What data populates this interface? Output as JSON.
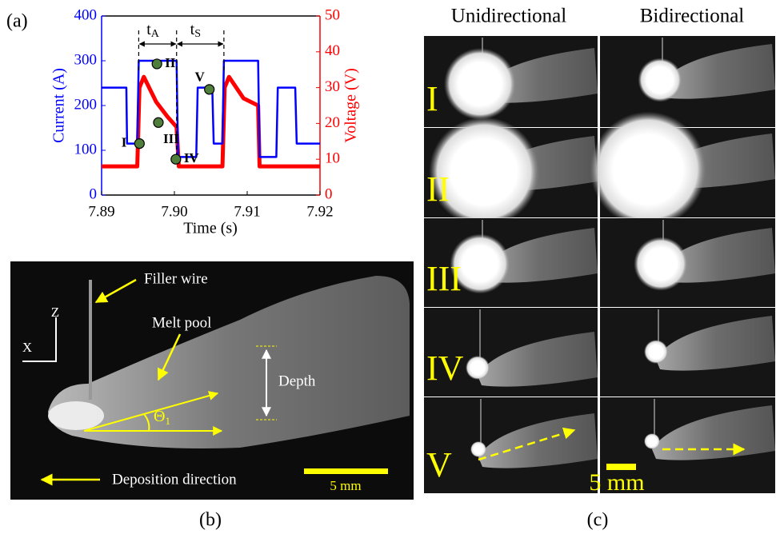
{
  "chart_data": {
    "type": "line",
    "panel_label": "(a)",
    "x_label": "Time (s)",
    "y_label": "Current (A)",
    "y2_label": "Voltage (V)",
    "xlim": [
      7.89,
      7.92
    ],
    "xticks": [
      7.89,
      {
        "value": 7.9,
        "label": "7.90"
      },
      7.91,
      7.92
    ],
    "ylim": [
      0,
      400
    ],
    "yticks": [
      0,
      100,
      200,
      300,
      400
    ],
    "y2lim": [
      0,
      50
    ],
    "y2ticks": [
      0,
      10,
      20,
      30,
      40,
      50
    ],
    "series": [
      {
        "color": "#0000ff",
        "x": [
          7.89,
          7.8934,
          7.8935,
          7.8949,
          7.8951,
          7.9003,
          7.9005,
          7.903,
          7.9032,
          7.9052,
          7.9054,
          7.9066,
          7.9068,
          7.9115,
          7.9117,
          7.914,
          7.9142,
          7.9166,
          7.9168,
          7.92
        ],
        "values": [
          240,
          240,
          115,
          115,
          300,
          300,
          85,
          85,
          240,
          240,
          115,
          115,
          300,
          300,
          85,
          85,
          240,
          240,
          115,
          115
        ]
      },
      {
        "color": "#ff0000",
        "axis": "y2",
        "x": [
          7.89,
          7.8949,
          7.8952,
          7.8958,
          7.8975,
          7.899,
          7.9003,
          7.9006,
          7.9066,
          7.9069,
          7.9075,
          7.9095,
          7.9115,
          7.9117,
          7.92
        ],
        "values": [
          8,
          8,
          30,
          33,
          26,
          22,
          19,
          8,
          8,
          30,
          33,
          27,
          25,
          8,
          8
        ]
      }
    ],
    "points": {
      "color": "#4f7f3a",
      "x": [
        7.8952,
        7.8976,
        7.8978,
        7.9002,
        7.9048
      ],
      "values": [
        115,
        293,
        162,
        80,
        236
      ],
      "labels": [
        "I",
        "II",
        "III",
        "IV",
        "V"
      ]
    },
    "annotations": [
      {
        "text": "t",
        "sub": "A"
      },
      {
        "text": "t",
        "sub": "S"
      }
    ]
  },
  "panel_b": {
    "label": "(b)",
    "filler_wire": "Filler wire",
    "melt_pool": "Melt pool",
    "axis_z": "Z",
    "axis_x": "X",
    "depth": "Depth",
    "angle": "Θ",
    "angle_sub": "1",
    "direction": "Deposition direction",
    "scale": "5 mm"
  },
  "panel_c": {
    "label": "(c)",
    "columns": [
      "Unidirectional",
      "Bidirectional"
    ],
    "rows": [
      "I",
      "II",
      "III",
      "IV",
      "V"
    ],
    "scale": "5 mm"
  }
}
